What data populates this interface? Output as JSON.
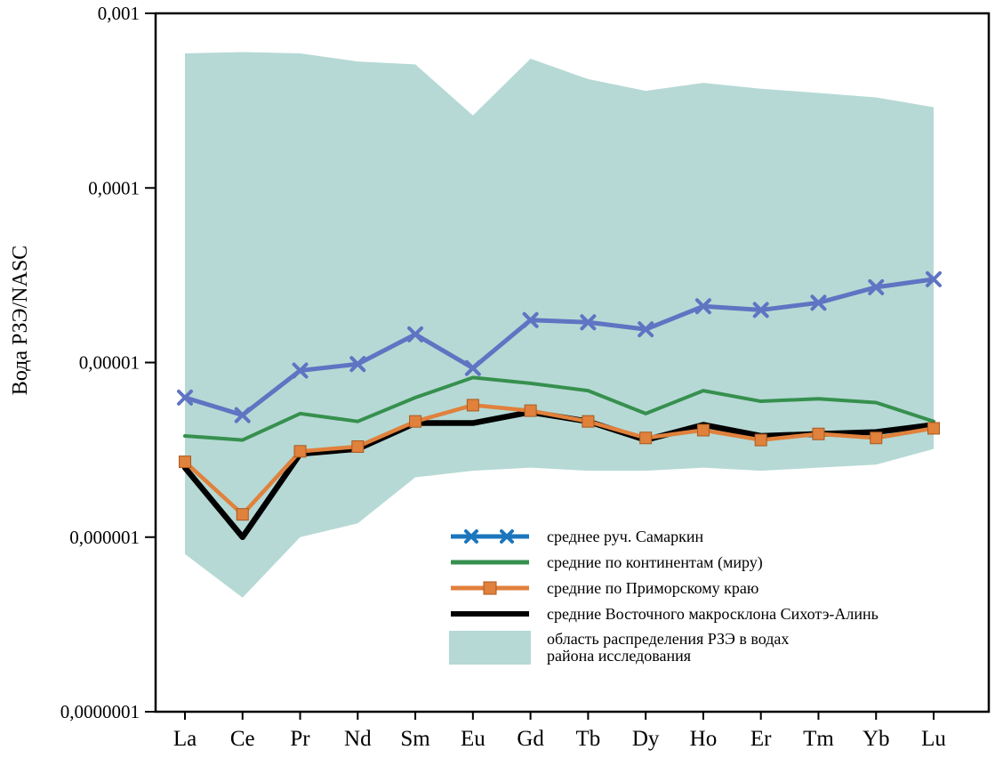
{
  "chart_data": {
    "type": "line",
    "title": "",
    "ylabel": "Вода РЗЭ/NASC",
    "xlabel": "",
    "y_scale": "log",
    "ylim": [
      1e-07,
      0.001
    ],
    "grid": false,
    "legend_position": "inside-bottom-center",
    "y_ticks": [
      {
        "value": 0.001,
        "label": "0,001"
      },
      {
        "value": 0.0001,
        "label": "0,0001"
      },
      {
        "value": 1e-05,
        "label": "0,00001"
      },
      {
        "value": 1e-06,
        "label": "0,000001"
      },
      {
        "value": 1e-07,
        "label": "0,0000001"
      }
    ],
    "x_categories": [
      "La",
      "Ce",
      "Pr",
      "Nd",
      "Sm",
      "Eu",
      "Gd",
      "Tb",
      "Dy",
      "Ho",
      "Er",
      "Tm",
      "Yb",
      "Lu"
    ],
    "band": {
      "id": "ree-distribution-area",
      "label_lines": [
        "область распределения РЗЭ в водах",
        "района исследования"
      ],
      "color": "#b6d9d5",
      "upper": [
        0.00059,
        0.0006,
        0.00059,
        0.00053,
        0.00051,
        0.00026,
        0.00055,
        0.00042,
        0.00036,
        0.0004,
        0.00037,
        0.00035,
        0.00033,
        0.00029
      ],
      "lower": [
        8e-07,
        4.5e-07,
        1e-06,
        1.2e-06,
        2.2e-06,
        2.4e-06,
        2.5e-06,
        2.4e-06,
        2.4e-06,
        2.5e-06,
        2.4e-06,
        2.5e-06,
        2.6e-06,
        3.2e-06
      ]
    },
    "series": [
      {
        "id": "samarkin-creek-mean",
        "name": "среднее руч. Самаркин",
        "color": "#5f74c2",
        "legend_color": "#1b76bd",
        "marker": "x",
        "line_width": 5,
        "values": [
          6.3e-06,
          5e-06,
          9e-06,
          9.8e-06,
          1.45e-05,
          9.3e-06,
          1.75e-05,
          1.7e-05,
          1.55e-05,
          2.1e-05,
          2e-05,
          2.2e-05,
          2.7e-05,
          3e-05
        ]
      },
      {
        "id": "continents-world-mean",
        "name": "средние по континентам (миру)",
        "color": "#36904e",
        "marker": "none",
        "line_width": 4,
        "values": [
          3.8e-06,
          3.6e-06,
          5.1e-06,
          4.6e-06,
          6.3e-06,
          8.2e-06,
          7.6e-06,
          6.9e-06,
          5.1e-06,
          6.9e-06,
          6e-06,
          6.2e-06,
          5.9e-06,
          4.6e-06
        ]
      },
      {
        "id": "primorsky-krai-mean",
        "name": "средние по Приморскому краю",
        "color": "#e0813c",
        "marker": "square",
        "line_width": 4.5,
        "values": [
          2.7e-06,
          1.35e-06,
          3.1e-06,
          3.3e-06,
          4.6e-06,
          5.7e-06,
          5.3e-06,
          4.6e-06,
          3.7e-06,
          4.1e-06,
          3.6e-06,
          3.9e-06,
          3.7e-06,
          4.2e-06
        ]
      },
      {
        "id": "sikhote-alin-east-macroslope-mean",
        "name": "средние Восточного макросклона Сихотэ-Алинь",
        "color": "#000000",
        "marker": "none",
        "line_width": 6.5,
        "values": [
          2.5e-06,
          1e-06,
          3e-06,
          3.2e-06,
          4.5e-06,
          4.5e-06,
          5.2e-06,
          4.6e-06,
          3.6e-06,
          4.4e-06,
          3.8e-06,
          3.9e-06,
          4e-06,
          4.4e-06
        ]
      }
    ]
  }
}
